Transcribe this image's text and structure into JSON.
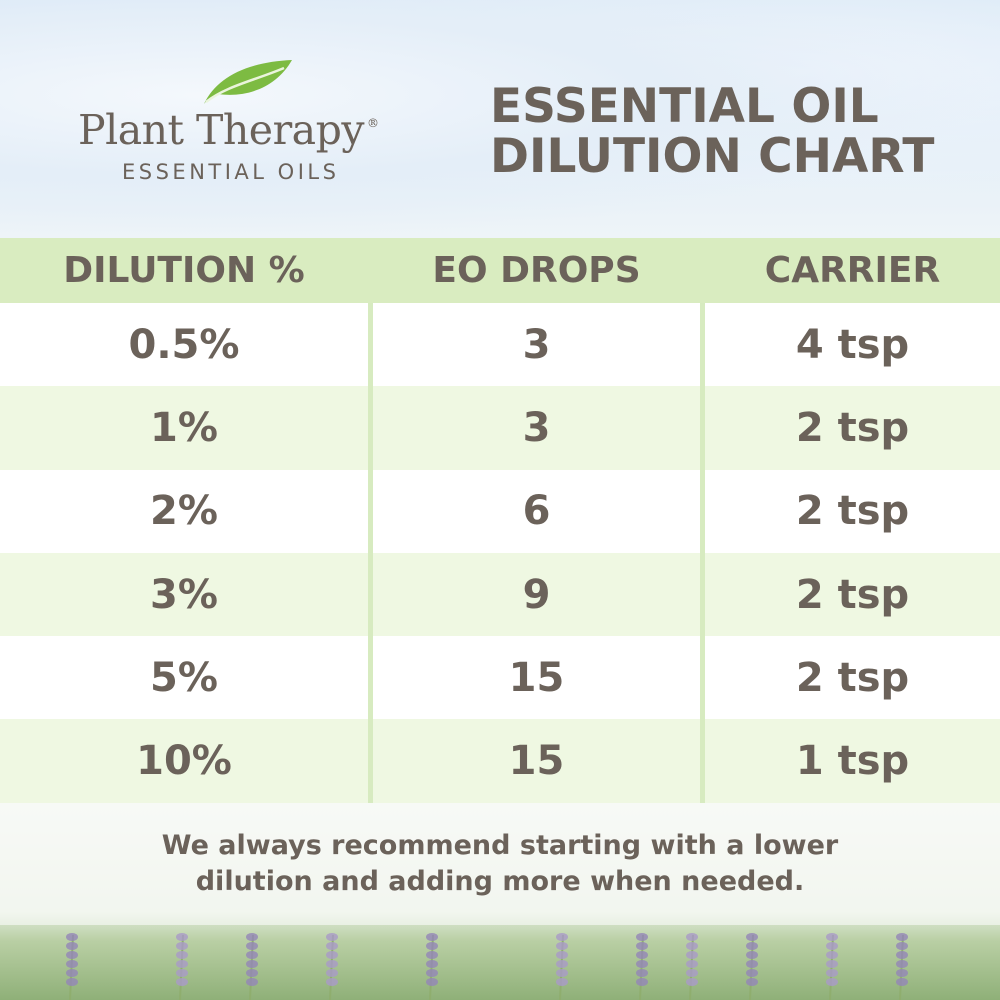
{
  "logo": {
    "brand": "Plant Therapy",
    "registered": "®",
    "subtitle": "ESSENTIAL OILS",
    "leaf_color": "#7dbb42"
  },
  "title": {
    "line1": "ESSENTIAL OIL",
    "line2": "DILUTION CHART"
  },
  "colors": {
    "text": "#6b625a",
    "header_band": "#d9ecc0",
    "row_alt": "#eff8e2"
  },
  "chart_data": {
    "type": "table",
    "columns": [
      "DILUTION %",
      "EO DROPS",
      "CARRIER"
    ],
    "rows": [
      [
        "0.5%",
        "3",
        "4 tsp"
      ],
      [
        "1%",
        "3",
        "2 tsp"
      ],
      [
        "2%",
        "6",
        "2 tsp"
      ],
      [
        "3%",
        "9",
        "2 tsp"
      ],
      [
        "5%",
        "15",
        "2 tsp"
      ],
      [
        "10%",
        "15",
        "1 tsp"
      ]
    ]
  },
  "note": {
    "line1": "We always recommend starting with a lower",
    "line2": "dilution and adding more when needed."
  }
}
